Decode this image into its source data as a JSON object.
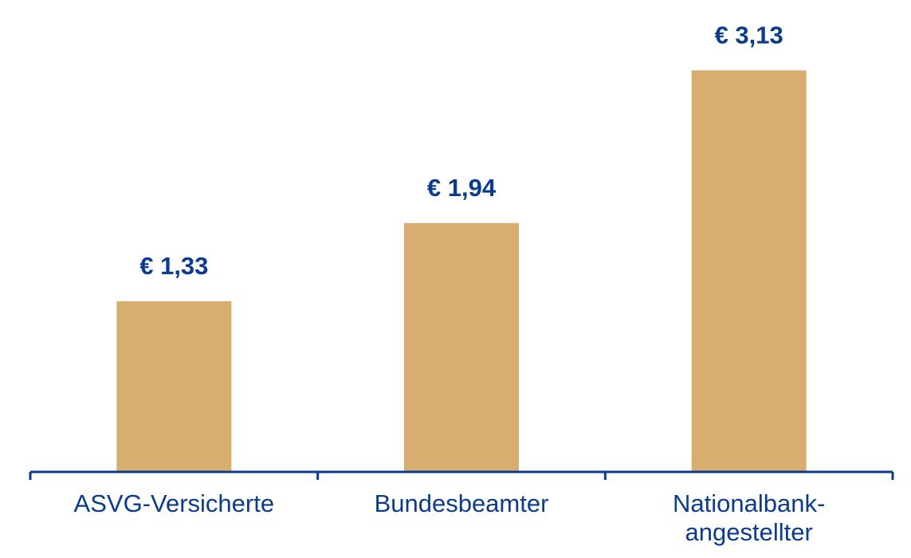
{
  "chart_data": {
    "type": "bar",
    "categories": [
      "ASVG-Versicherte",
      "Bundesbeamter",
      "Nationalbank-angestellter"
    ],
    "category_lines": [
      [
        "ASVG-Versicherte"
      ],
      [
        "Bundesbeamter"
      ],
      [
        "Nationalbank-",
        "angestellter"
      ]
    ],
    "values": [
      1.33,
      1.94,
      3.13
    ],
    "data_labels": [
      "€ 1,33",
      "€ 1,94",
      "€ 3,13"
    ],
    "ylim": [
      0,
      3.43
    ],
    "grid": false,
    "legend": "none",
    "colors": {
      "bar": "#d8ae70",
      "axis": "#0b3b8c",
      "label": "#0b3b8c"
    }
  }
}
